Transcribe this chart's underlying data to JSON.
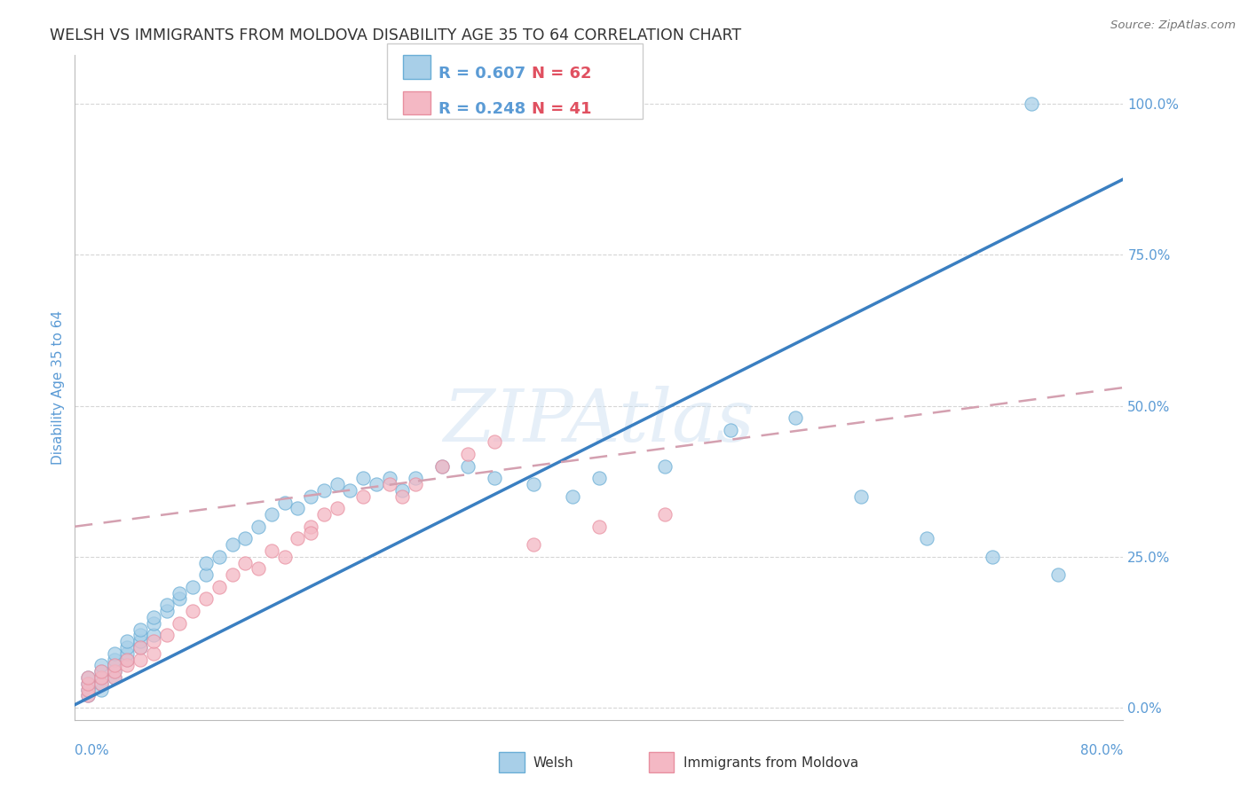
{
  "title": "WELSH VS IMMIGRANTS FROM MOLDOVA DISABILITY AGE 35 TO 64 CORRELATION CHART",
  "source": "Source: ZipAtlas.com",
  "ylabel": "Disability Age 35 to 64",
  "ytick_labels": [
    "0.0%",
    "25.0%",
    "50.0%",
    "75.0%",
    "100.0%"
  ],
  "ytick_values": [
    0,
    25,
    50,
    75,
    100
  ],
  "xlim": [
    0,
    80
  ],
  "ylim": [
    -2,
    108
  ],
  "watermark": "ZIPAtlas",
  "legend_welsh_r": "R = 0.607",
  "legend_welsh_n": "N = 62",
  "legend_moldova_r": "R = 0.248",
  "legend_moldova_n": "N = 41",
  "welsh_color": "#a8cfe8",
  "welsh_edge_color": "#6aaed6",
  "moldova_color": "#f4b8c4",
  "moldova_edge_color": "#e88fa0",
  "welsh_line_color": "#3a7fc1",
  "moldova_line_color": "#d4a0b0",
  "title_color": "#333333",
  "axis_label_color": "#5b9bd5",
  "tick_color": "#5b9bd5",
  "legend_r_color": "#5b9bd5",
  "legend_n_color": "#e05060",
  "background_color": "#ffffff",
  "grid_color": "#cccccc",
  "welsh_line_x": [
    0,
    80
  ],
  "welsh_line_y": [
    0.5,
    87.5
  ],
  "moldova_line_x": [
    0,
    80
  ],
  "moldova_line_y": [
    30.0,
    53.0
  ],
  "welsh_x": [
    1,
    1,
    1,
    1,
    2,
    2,
    2,
    2,
    2,
    3,
    3,
    3,
    3,
    3,
    4,
    4,
    4,
    4,
    5,
    5,
    5,
    5,
    6,
    6,
    6,
    7,
    7,
    8,
    8,
    9,
    10,
    10,
    11,
    12,
    13,
    14,
    15,
    16,
    17,
    18,
    19,
    20,
    21,
    22,
    23,
    24,
    25,
    26,
    28,
    30,
    32,
    35,
    38,
    40,
    45,
    50,
    55,
    60,
    65,
    70,
    75,
    73
  ],
  "welsh_y": [
    2,
    3,
    4,
    5,
    3,
    4,
    5,
    6,
    7,
    5,
    6,
    7,
    8,
    9,
    8,
    9,
    10,
    11,
    10,
    11,
    12,
    13,
    12,
    14,
    15,
    16,
    17,
    18,
    19,
    20,
    22,
    24,
    25,
    27,
    28,
    30,
    32,
    34,
    33,
    35,
    36,
    37,
    36,
    38,
    37,
    38,
    36,
    38,
    40,
    40,
    38,
    37,
    35,
    38,
    40,
    46,
    48,
    35,
    28,
    25,
    22,
    100
  ],
  "moldova_x": [
    1,
    1,
    1,
    1,
    2,
    2,
    2,
    3,
    3,
    3,
    4,
    4,
    5,
    5,
    6,
    6,
    7,
    8,
    9,
    10,
    11,
    12,
    13,
    14,
    15,
    16,
    17,
    18,
    18,
    19,
    20,
    22,
    24,
    25,
    26,
    28,
    30,
    32,
    35,
    40,
    45
  ],
  "moldova_y": [
    2,
    3,
    4,
    5,
    4,
    5,
    6,
    5,
    6,
    7,
    7,
    8,
    8,
    10,
    9,
    11,
    12,
    14,
    16,
    18,
    20,
    22,
    24,
    23,
    26,
    25,
    28,
    30,
    29,
    32,
    33,
    35,
    37,
    35,
    37,
    40,
    42,
    44,
    27,
    30,
    32
  ]
}
